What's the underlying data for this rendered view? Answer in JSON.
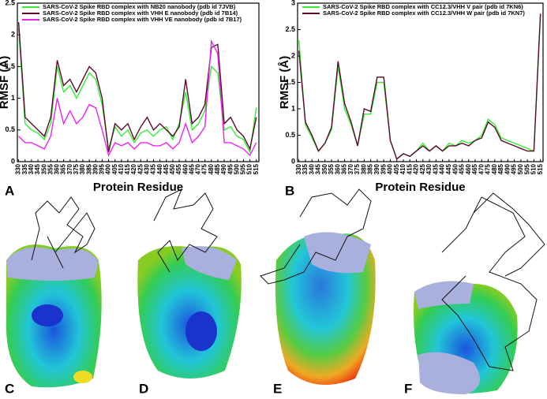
{
  "chart_data": [
    {
      "type": "line",
      "panel_label": "A",
      "x_label": "Protein Residue",
      "y_label": "RMSF (Å)",
      "x": [
        330,
        335,
        340,
        345,
        350,
        355,
        360,
        365,
        370,
        375,
        380,
        385,
        390,
        395,
        400,
        405,
        410,
        415,
        420,
        425,
        430,
        435,
        440,
        445,
        450,
        455,
        460,
        465,
        470,
        475,
        480,
        485,
        490,
        495,
        500,
        505,
        510,
        515
      ],
      "xlim": [
        329,
        517
      ],
      "xticks": [
        330,
        335,
        340,
        345,
        350,
        355,
        360,
        365,
        370,
        375,
        380,
        385,
        390,
        395,
        400,
        405,
        410,
        415,
        420,
        425,
        430,
        435,
        440,
        445,
        450,
        455,
        460,
        465,
        470,
        475,
        480,
        485,
        490,
        495,
        500,
        505,
        510,
        515
      ],
      "ylim": [
        0,
        2.5
      ],
      "yticks": [
        0,
        0.5,
        1,
        1.5,
        2,
        2.5
      ],
      "legend": "top-left",
      "series": [
        {
          "name": "SARS-CoV-2 Spike RBD complex with NB20 nanobody (pdb id 7JVB)",
          "color": "#33ee33",
          "values": [
            2.1,
            0.6,
            0.5,
            0.45,
            0.35,
            0.6,
            1.5,
            1.1,
            1.2,
            1.0,
            1.2,
            1.4,
            1.3,
            0.9,
            0.2,
            0.55,
            0.4,
            0.5,
            0.3,
            0.45,
            0.5,
            0.4,
            0.5,
            0.55,
            0.35,
            0.6,
            1.1,
            0.5,
            0.6,
            0.8,
            1.5,
            1.4,
            0.5,
            0.55,
            0.4,
            0.35,
            0.15,
            0.85
          ]
        },
        {
          "name": "SARS-CoV-2 Spike RBD complex with VHH E nanobody (pdb id 7B14)",
          "color": "#5a0a2a",
          "values": [
            2.2,
            0.7,
            0.6,
            0.5,
            0.4,
            0.7,
            1.6,
            1.2,
            1.3,
            1.1,
            1.3,
            1.5,
            1.4,
            1.0,
            0.15,
            0.6,
            0.5,
            0.6,
            0.35,
            0.55,
            0.7,
            0.5,
            0.6,
            0.5,
            0.4,
            0.55,
            1.3,
            0.6,
            0.7,
            0.9,
            1.8,
            1.85,
            0.6,
            0.7,
            0.5,
            0.4,
            0.2,
            0.7
          ]
        },
        {
          "name": "SARS-CoV-2 Spike RBD complex with VHH VE nanobody (pdb id 7B17)",
          "color": "#ee22ee",
          "values": [
            0.4,
            0.3,
            0.3,
            0.25,
            0.2,
            0.4,
            1.0,
            0.6,
            0.8,
            0.6,
            0.7,
            0.9,
            0.85,
            0.5,
            0.1,
            0.3,
            0.25,
            0.3,
            0.2,
            0.3,
            0.3,
            0.25,
            0.25,
            0.3,
            0.2,
            0.3,
            0.6,
            0.3,
            0.4,
            0.55,
            1.9,
            1.7,
            0.3,
            0.3,
            0.25,
            0.2,
            0.1,
            0.3
          ]
        }
      ]
    },
    {
      "type": "line",
      "panel_label": "B",
      "x_label": "Protein Residue",
      "y_label": "RMSF (Å)",
      "x": [
        330,
        335,
        340,
        345,
        350,
        355,
        360,
        365,
        370,
        375,
        380,
        385,
        390,
        395,
        400,
        405,
        410,
        415,
        420,
        425,
        430,
        435,
        440,
        445,
        450,
        455,
        460,
        465,
        470,
        475,
        480,
        485,
        490,
        495,
        500,
        505,
        510,
        515
      ],
      "xlim": [
        329,
        517
      ],
      "xticks": [
        330,
        335,
        340,
        345,
        350,
        355,
        360,
        365,
        370,
        375,
        380,
        385,
        390,
        395,
        400,
        405,
        410,
        415,
        420,
        425,
        430,
        435,
        440,
        445,
        450,
        455,
        460,
        465,
        470,
        475,
        480,
        485,
        490,
        495,
        500,
        505,
        510,
        515
      ],
      "ylim": [
        0,
        3
      ],
      "yticks": [
        0,
        0.5,
        1,
        1.5,
        2,
        2.5,
        3
      ],
      "legend": "top-left",
      "series": [
        {
          "name": "SARS-CoV-2 Spike RBD complex with CC12.3/VHH V pair (pdb id 7KN6)",
          "color": "#33ee33",
          "values": [
            2.3,
            0.7,
            0.45,
            0.2,
            0.35,
            0.6,
            1.8,
            1.0,
            0.7,
            0.3,
            0.9,
            0.9,
            1.5,
            1.5,
            0.4,
            0.05,
            0.15,
            0.1,
            0.2,
            0.35,
            0.2,
            0.3,
            0.2,
            0.35,
            0.3,
            0.4,
            0.35,
            0.4,
            0.5,
            0.8,
            0.7,
            0.45,
            0.4,
            0.35,
            0.3,
            0.25,
            0.2,
            2.8
          ]
        },
        {
          "name": "SARS-CoV-2 Spike RBD complex with CC12.3/VHH W pair (pdb id 7KN7)",
          "color": "#5a0a2a",
          "values": [
            2.1,
            0.75,
            0.5,
            0.2,
            0.35,
            0.65,
            1.9,
            1.1,
            0.75,
            0.3,
            1.0,
            0.95,
            1.6,
            1.6,
            0.4,
            0.05,
            0.15,
            0.1,
            0.2,
            0.3,
            0.2,
            0.3,
            0.2,
            0.3,
            0.3,
            0.35,
            0.3,
            0.4,
            0.45,
            0.75,
            0.65,
            0.4,
            0.35,
            0.3,
            0.25,
            0.2,
            0.2,
            2.8
          ]
        }
      ]
    }
  ],
  "structure_panels": [
    {
      "label": "C"
    },
    {
      "label": "D"
    },
    {
      "label": "E"
    },
    {
      "label": "F"
    }
  ]
}
